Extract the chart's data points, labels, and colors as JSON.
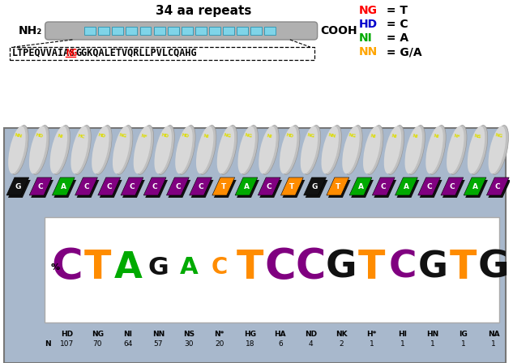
{
  "title": "34 aa repeats",
  "nh2_label": "NH₂",
  "cooh_label": "COOH",
  "sequence_black1": "LTPEQVVAIAS",
  "sequence_ng": "NG",
  "sequence_black2": "GGKQALETVQRLLPVLCQAHG",
  "legend": [
    {
      "code": "NG",
      "color": "#ff0000",
      "eq": " = T"
    },
    {
      "code": "HD",
      "color": "#0000cc",
      "eq": " = C"
    },
    {
      "code": "NI",
      "color": "#00aa00",
      "eq": " = A"
    },
    {
      "code": "NN",
      "color": "#ffa500",
      "eq": " = G/A"
    }
  ],
  "repeat_labels": [
    "NN",
    "HD",
    "NI",
    "HC",
    "HD",
    "NG",
    "N*",
    "HD",
    "HD",
    "NI",
    "NG",
    "NG",
    "NI",
    "HD",
    "NG",
    "NN",
    "NG",
    "NI",
    "NI",
    "NI",
    "NI",
    "N*",
    "NS",
    "NG"
  ],
  "dna_letters": [
    "G",
    "C",
    "A",
    "C",
    "C",
    "C",
    "C",
    "C",
    "C",
    "T",
    "A",
    "C",
    "T",
    "G",
    "T",
    "A",
    "C",
    "A",
    "C",
    "C",
    "A",
    "C"
  ],
  "dna_colors": [
    "#111111",
    "#800080",
    "#00aa00",
    "#800080",
    "#800080",
    "#800080",
    "#800080",
    "#800080",
    "#800080",
    "#ff8c00",
    "#00aa00",
    "#800080",
    "#ff8c00",
    "#111111",
    "#ff8c00",
    "#00aa00",
    "#800080",
    "#00aa00",
    "#800080",
    "#800080",
    "#00aa00",
    "#800080"
  ],
  "logo_letters": [
    "C",
    "T",
    "A",
    "G",
    "A",
    "C",
    "T",
    "C",
    "C",
    "G",
    "T",
    "C",
    "G",
    "T",
    "G"
  ],
  "logo_colors": [
    "#800080",
    "#ff8c00",
    "#00aa00",
    "#111111",
    "#00aa00",
    "#ff8c00",
    "#ff8c00",
    "#800080",
    "#800080",
    "#111111",
    "#ff8c00",
    "#800080",
    "#111111",
    "#ff8c00",
    "#111111"
  ],
  "logo_sizes": [
    100,
    90,
    80,
    45,
    40,
    35,
    90,
    100,
    95,
    85,
    90,
    85,
    80,
    90,
    85
  ],
  "x_labels": [
    "HD",
    "NG",
    "NI",
    "NN",
    "NS",
    "N*",
    "HG",
    "HA",
    "ND",
    "NK",
    "H*",
    "HI",
    "HN",
    "IG",
    "NA"
  ],
  "n_values": [
    "107",
    "70",
    "64",
    "57",
    "30",
    "20",
    "18",
    "6",
    "4",
    "2",
    "1",
    "1",
    "1",
    "1",
    "1"
  ],
  "bg_color": "#a8b8cc",
  "border_color": "#777777"
}
